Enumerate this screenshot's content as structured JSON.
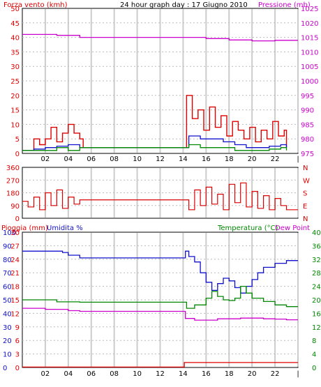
{
  "chart_data": [
    {
      "type": "line",
      "title": "24 hour graph day : 17 Giugno 2010",
      "left_axis_title": "Forza vento (kmh)",
      "right_axis_title": "Pressione (mb)",
      "x_ticks": [
        "02",
        "04",
        "06",
        "08",
        "10",
        "12",
        "14",
        "16",
        "18",
        "20",
        "22",
        "|"
      ],
      "y_left_ticks": [
        "50",
        "45",
        "40",
        "35",
        "30",
        "25",
        "20",
        "15",
        "10",
        "5",
        "0"
      ],
      "y_right_ticks": [
        "1025",
        "1020",
        "1015",
        "1010",
        "1005",
        "1000",
        "995",
        "990",
        "985",
        "980",
        "975"
      ],
      "ylim_left": [
        0,
        50
      ],
      "ylim_right": [
        975,
        1025
      ],
      "grid": true,
      "colors": {
        "wind_gust": "#dd0000",
        "wind_avg": "#1010cc",
        "wind_min": "#008800",
        "pressure": "#cc00cc"
      },
      "series": [
        {
          "key": "pressure",
          "axis": "right",
          "x": [
            0,
            3,
            5,
            8,
            10,
            12,
            14,
            16,
            18,
            20,
            22,
            24
          ],
          "y": [
            1016,
            1015.7,
            1015,
            1015,
            1015,
            1015,
            1015,
            1014.6,
            1014.1,
            1013.8,
            1014,
            1014
          ]
        },
        {
          "key": "wind_gust",
          "axis": "left",
          "x": [
            0,
            1,
            1.5,
            2,
            2.5,
            3,
            3.5,
            4,
            4.5,
            5,
            5.3,
            14,
            14.3,
            14.8,
            15.3,
            15.8,
            16.3,
            16.8,
            17.3,
            17.8,
            18.3,
            18.8,
            19.3,
            19.8,
            20.3,
            20.8,
            21.3,
            21.8,
            22.3,
            22.8,
            23
          ],
          "y": [
            1,
            5,
            3,
            5,
            9,
            4,
            7,
            10,
            7,
            5,
            2,
            2,
            20,
            12,
            15,
            8,
            16,
            9,
            13,
            6,
            11,
            8,
            5,
            9,
            4,
            8,
            5,
            11,
            6,
            8,
            2
          ]
        },
        {
          "key": "wind_avg",
          "axis": "left",
          "x": [
            0,
            1,
            2,
            3,
            4,
            5,
            5.3,
            14,
            14.5,
            15.5,
            16.5,
            17.5,
            18.5,
            19.5,
            20.5,
            21.5,
            22.5,
            23
          ],
          "y": [
            1,
            1.5,
            2,
            2.5,
            3,
            2,
            2,
            2,
            6,
            5,
            5,
            4,
            3,
            2,
            2,
            2.5,
            3,
            2
          ]
        },
        {
          "key": "wind_min",
          "axis": "left",
          "x": [
            0,
            1,
            2,
            3,
            4,
            5,
            5.3,
            14,
            14.5,
            15.5,
            16.5,
            17.5,
            18.5,
            19.5,
            20.5,
            21.5,
            22.5,
            23
          ],
          "y": [
            1,
            1,
            1,
            2,
            1,
            2,
            2,
            2,
            3,
            2,
            2,
            2,
            1,
            1,
            1,
            1.5,
            2,
            1
          ]
        }
      ]
    },
    {
      "type": "line",
      "y_left_ticks": [
        "360",
        "270",
        "180",
        "90",
        "0"
      ],
      "y_right_ticks": [
        "N",
        "W",
        "S",
        "E",
        "N"
      ],
      "ylim": [
        0,
        360
      ],
      "grid": true,
      "colors": {
        "direction": "#dd0000"
      },
      "series": [
        {
          "key": "wind_direction",
          "x": [
            0,
            0.5,
            1,
            1.5,
            2,
            2.5,
            3,
            3.5,
            4,
            4.5,
            5,
            5.5,
            14,
            14.5,
            15,
            15.5,
            16,
            16.5,
            17,
            17.5,
            18,
            18.5,
            19,
            19.5,
            20,
            20.5,
            21,
            21.5,
            22,
            22.5,
            23,
            24
          ],
          "y": [
            120,
            80,
            150,
            60,
            180,
            90,
            200,
            70,
            150,
            100,
            130,
            130,
            130,
            60,
            200,
            90,
            220,
            100,
            170,
            60,
            240,
            110,
            250,
            80,
            190,
            70,
            160,
            60,
            140,
            90,
            60,
            60
          ]
        }
      ]
    },
    {
      "type": "line",
      "left_axis_title_1": "Pioggia (mm)",
      "left_axis_title_2": "Umidita %",
      "right_axis_title_1": "Temperatura (°C)",
      "right_axis_title_2": "Dew Point",
      "x_ticks": [
        "02",
        "04",
        "06",
        "08",
        "10",
        "12",
        "14",
        "16",
        "18",
        "20",
        "22",
        "|"
      ],
      "y_rain_ticks": [
        "30",
        "27",
        "24",
        "21",
        "18",
        "15",
        "12",
        "9",
        "6",
        "3",
        "0"
      ],
      "y_hum_ticks": [
        "100",
        "90",
        "80",
        "70",
        "60",
        "50",
        "40",
        "30",
        "20",
        "10",
        "0"
      ],
      "y_temp_ticks": [
        "40",
        "36",
        "32",
        "28",
        "24",
        "20",
        "16",
        "12",
        "8",
        "4",
        "0"
      ],
      "ylim_rain": [
        0,
        30
      ],
      "ylim_humidity": [
        0,
        100
      ],
      "ylim_temp": [
        0,
        40
      ],
      "grid": true,
      "colors": {
        "rain": "#dd0000",
        "humidity": "#1010cc",
        "temperature": "#008800",
        "dew_point": "#cc00cc",
        "hum_labels": "#1010cc",
        "rain_labels": "#dd0000",
        "temp_labels": "#008800"
      },
      "series": [
        {
          "key": "humidity",
          "axis": "humidity",
          "x": [
            0,
            2,
            3,
            3.5,
            4,
            5,
            8,
            12,
            14,
            14.2,
            14.5,
            15,
            15.5,
            16,
            16.5,
            17,
            17.5,
            18,
            18.5,
            19,
            19.5,
            20,
            20.5,
            21,
            22,
            23,
            24
          ],
          "y": [
            86,
            86,
            86,
            85,
            83,
            81,
            81,
            81,
            81,
            86,
            82,
            78,
            70,
            63,
            57,
            62,
            66,
            64,
            59,
            55,
            60,
            65,
            70,
            74,
            77,
            79,
            79
          ]
        },
        {
          "key": "temperature",
          "axis": "temp",
          "x": [
            0,
            3,
            5,
            8,
            12,
            14,
            14.3,
            15,
            16,
            16.5,
            17,
            17.5,
            18,
            18.5,
            19,
            19.5,
            20,
            21,
            22,
            23,
            24
          ],
          "y": [
            20,
            19.4,
            19.3,
            19.3,
            19.3,
            19.3,
            17.5,
            18.5,
            20.5,
            22.5,
            21,
            20,
            19.8,
            20.5,
            24,
            22,
            20.5,
            19.5,
            18.5,
            18,
            18
          ]
        },
        {
          "key": "dew_point",
          "axis": "temp",
          "x": [
            0,
            2,
            4,
            5,
            8,
            12,
            14,
            14.2,
            15,
            17,
            19,
            21,
            22,
            23,
            24
          ],
          "y": [
            17.5,
            17.2,
            16.8,
            16.6,
            16.6,
            16.6,
            16.6,
            14.5,
            14,
            14.4,
            14.6,
            14.4,
            14.3,
            14.1,
            14.1
          ]
        },
        {
          "key": "rain",
          "axis": "rain",
          "x": [
            0,
            5,
            10,
            14,
            14.1,
            18,
            22,
            24
          ],
          "y": [
            0.1,
            0.1,
            0.1,
            0.1,
            1.1,
            1.1,
            1.1,
            1.1
          ]
        }
      ]
    }
  ]
}
